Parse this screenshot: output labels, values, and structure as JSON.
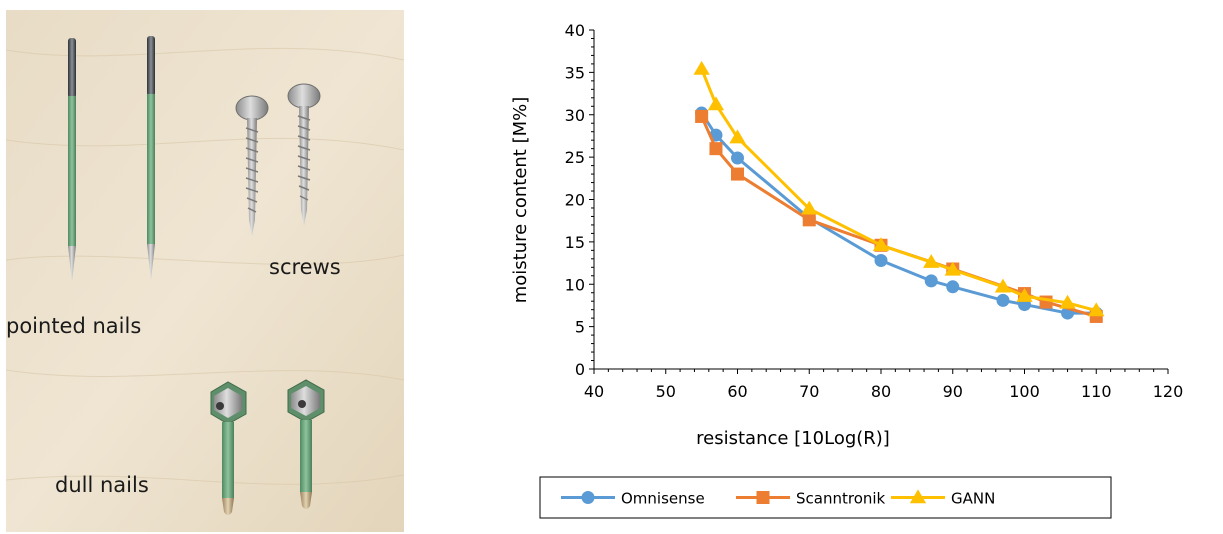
{
  "photo": {
    "labels": {
      "pointed_nails": "pointed nails",
      "screws": "screws",
      "dull_nails": "dull nails"
    }
  },
  "chart_data": {
    "type": "line",
    "xlabel": "resistance [10Log(R)]",
    "ylabel": "moisture content [M%]",
    "xlim": [
      40,
      120
    ],
    "ylim": [
      0,
      40
    ],
    "xticks": [
      40,
      50,
      60,
      70,
      80,
      90,
      100,
      110,
      120
    ],
    "yticks": [
      0,
      5,
      10,
      15,
      20,
      25,
      30,
      35,
      40
    ],
    "grid": false,
    "legend_position": "bottom",
    "series": [
      {
        "name": "Omnisense",
        "color": "#5B9BD5",
        "marker": "circle",
        "points": [
          [
            55,
            30.2
          ],
          [
            57,
            27.6
          ],
          [
            60,
            24.9
          ],
          [
            70,
            17.8
          ],
          [
            80,
            12.8
          ],
          [
            87,
            10.4
          ],
          [
            90,
            9.7
          ],
          [
            97,
            8.1
          ],
          [
            100,
            7.6
          ],
          [
            106,
            6.6
          ],
          [
            110,
            6.6
          ]
        ]
      },
      {
        "name": "Scanntronik",
        "color": "#ED7D31",
        "marker": "square",
        "points": [
          [
            55,
            29.8
          ],
          [
            57,
            26.0
          ],
          [
            60,
            23.0
          ],
          [
            70,
            17.6
          ],
          [
            80,
            14.6
          ],
          [
            90,
            11.8
          ],
          [
            100,
            8.9
          ],
          [
            103,
            7.9
          ],
          [
            110,
            6.2
          ]
        ]
      },
      {
        "name": "GANN",
        "color": "#FFC000",
        "marker": "triangle",
        "points": [
          [
            55,
            35.4
          ],
          [
            57,
            31.2
          ],
          [
            60,
            27.3
          ],
          [
            70,
            18.9
          ],
          [
            80,
            14.6
          ],
          [
            87,
            12.6
          ],
          [
            90,
            11.7
          ],
          [
            97,
            9.7
          ],
          [
            100,
            8.6
          ],
          [
            106,
            7.8
          ],
          [
            110,
            6.9
          ]
        ]
      }
    ]
  }
}
